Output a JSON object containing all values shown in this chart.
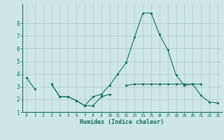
{
  "xlabel": "Humidex (Indice chaleur)",
  "x": [
    0,
    1,
    2,
    3,
    4,
    5,
    6,
    7,
    8,
    9,
    10,
    11,
    12,
    13,
    14,
    15,
    16,
    17,
    18,
    19,
    20,
    21,
    22,
    23
  ],
  "line1": [
    3.7,
    2.8,
    null,
    3.2,
    2.2,
    2.2,
    1.9,
    1.5,
    1.5,
    2.2,
    2.4,
    null,
    3.1,
    3.2,
    3.2,
    3.2,
    3.2,
    3.2,
    3.2,
    3.2,
    3.2,
    3.2,
    null,
    null
  ],
  "line2": [
    null,
    null,
    null,
    3.2,
    2.2,
    2.2,
    1.9,
    1.5,
    2.2,
    2.4,
    3.1,
    4.0,
    4.9,
    6.9,
    8.8,
    8.8,
    7.1,
    5.9,
    3.9,
    3.1,
    3.2,
    2.3,
    1.8,
    1.7
  ],
  "ylim": [
    1,
    9.5
  ],
  "xlim": [
    -0.5,
    23.5
  ],
  "yticks": [
    1,
    2,
    3,
    4,
    5,
    6,
    7,
    8
  ],
  "xticks": [
    0,
    1,
    2,
    3,
    4,
    5,
    6,
    7,
    8,
    9,
    10,
    11,
    12,
    13,
    14,
    15,
    16,
    17,
    18,
    19,
    20,
    21,
    22,
    23
  ],
  "line_color": "#1a6b5a",
  "bg_color": "#cde8e4",
  "grid_color": "#aacac5",
  "axis_color": "#1a6b5a",
  "tick_color": "#1a6b5a",
  "label_color": "#1a6b5a"
}
